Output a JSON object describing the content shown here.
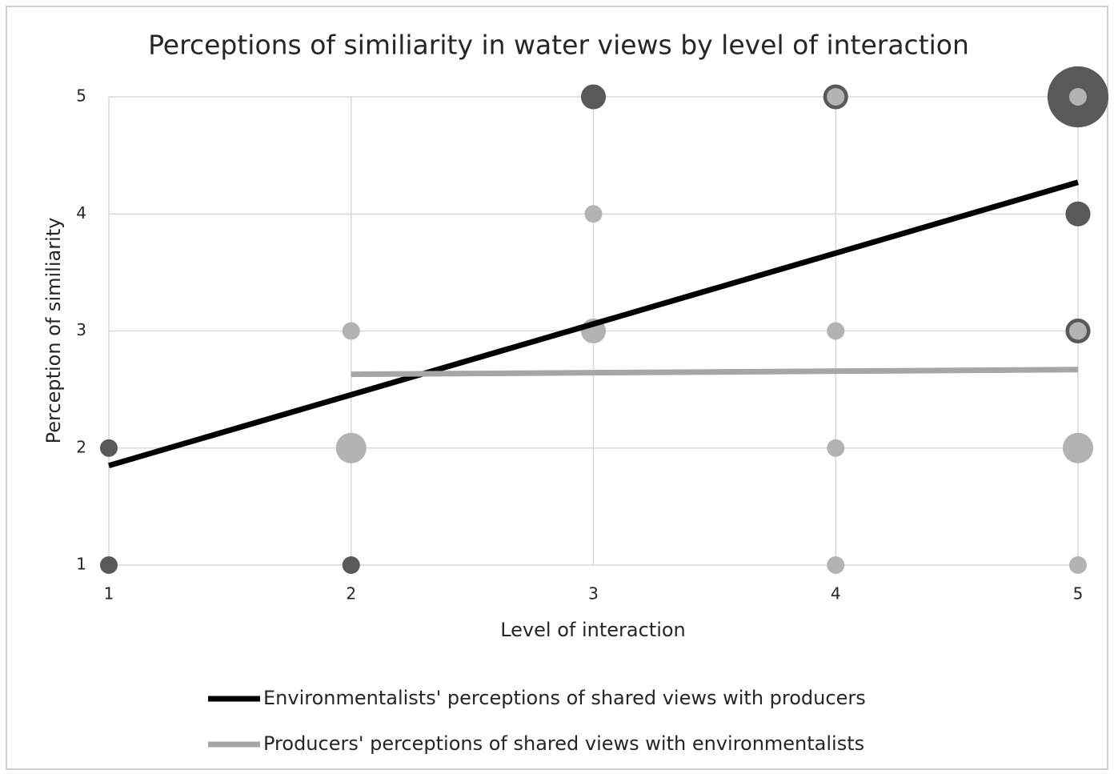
{
  "chart_data": {
    "type": "bubble",
    "title": "Perceptions of similiarity in water views by level of interaction",
    "xlabel": "Level of interaction",
    "ylabel": "Perception of similiarity",
    "xlim": [
      1,
      5
    ],
    "ylim": [
      1,
      5
    ],
    "xticks": [
      1,
      2,
      3,
      4,
      5
    ],
    "yticks": [
      1,
      2,
      3,
      4,
      5
    ],
    "grid": true,
    "series": [
      {
        "name": "Environmentalists' perceptions of shared views with producers",
        "color": "#595959",
        "line_color": "#000000",
        "x": [
          1,
          1,
          2,
          3,
          4,
          5,
          5,
          5
        ],
        "values": [
          1,
          2,
          1,
          5,
          5,
          5,
          4,
          3
        ],
        "sizes": [
          1,
          1,
          1,
          2,
          2,
          12,
          2,
          2
        ],
        "trend_x": [
          1,
          5
        ],
        "trend_values": [
          1.85,
          4.27
        ]
      },
      {
        "name": "Producers' perceptions of shared views with environmentalists",
        "color": "#b3b3b3",
        "line_color": "#a6a6a6",
        "x": [
          2,
          2,
          3,
          3,
          4,
          4,
          4,
          4,
          5,
          5,
          5,
          5
        ],
        "values": [
          3,
          2,
          4,
          3,
          5,
          3,
          2,
          1,
          5,
          3,
          2,
          1
        ],
        "sizes": [
          1,
          3,
          1,
          2,
          1,
          1,
          1,
          1,
          1,
          1,
          3,
          1
        ],
        "trend_x": [
          2,
          5
        ],
        "trend_values": [
          2.63,
          2.67
        ]
      }
    ]
  }
}
